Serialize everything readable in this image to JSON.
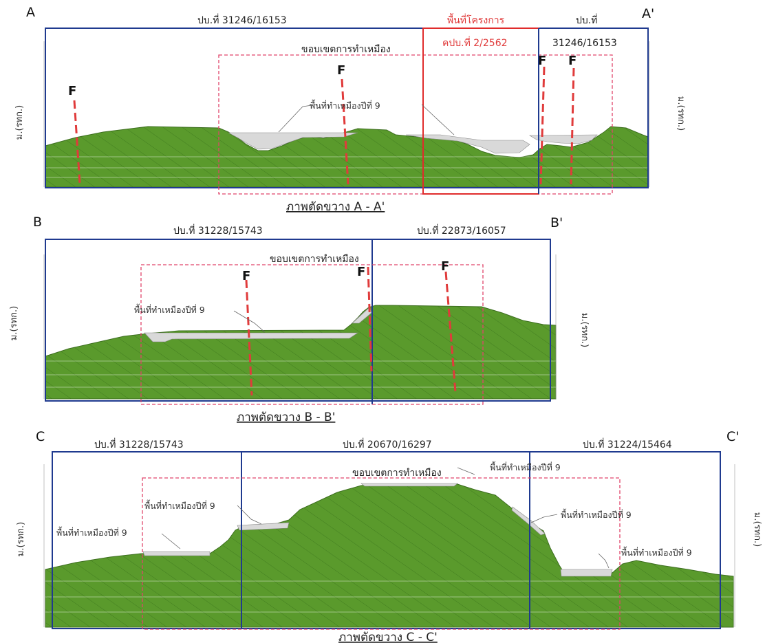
{
  "colors": {
    "terrain": "#5a9a2c",
    "hatch": "#3f7a1e",
    "boundary_blue": "#1f3a8f",
    "mining_boundary": "#e0446a",
    "project_area": "#e02b2b",
    "fault": "#e03b3b",
    "pit": "#d9d9d9"
  },
  "axis_unit_label": "ม.(รทก.)",
  "fault_label": "F",
  "sections": [
    {
      "start_label": "A",
      "end_label": "A'",
      "caption": "ภาพตัดขวาง A - A'",
      "mining_boundary_label": "ขอบเขตการทำเหมือง",
      "project_area_label": "พื้นที่โครงการ",
      "project_permit_label": "คปบ.ที่ 2/2562",
      "lots": [
        "ปบ.ที่ 31246/16153",
        "ปบ.ที่",
        "31246/16153"
      ],
      "mining_area_labels": [
        "พื้นที่ทำเหมืองปีที่ 9"
      ]
    },
    {
      "start_label": "B",
      "end_label": "B'",
      "caption": "ภาพตัดขวาง B - B'",
      "mining_boundary_label": "ขอบเขตการทำเหมือง",
      "lots": [
        "ปบ.ที่ 31228/15743",
        "ปบ.ที่ 22873/16057"
      ],
      "mining_area_labels": [
        "พื้นที่ทำเหมืองปีที่ 9"
      ]
    },
    {
      "start_label": "C",
      "end_label": "C'",
      "caption": "ภาพตัดขวาง C - C'",
      "mining_boundary_label": "ขอบเขตการทำเหมือง",
      "lots": [
        "ปบ.ที่ 31228/15743",
        "ปบ.ที่ 20670/16297",
        "ปบ.ที่ 31224/15464"
      ],
      "mining_area_labels": [
        "พื้นที่ทำเหมืองปีที่ 9",
        "พื้นที่ทำเหมืองปีที่ 9",
        "พื้นที่ทำเหมืองปีที่ 9",
        "พื้นที่ทำเหมืองปีที่ 9",
        "พื้นที่ทำเหมืองปีที่ 9"
      ]
    }
  ]
}
